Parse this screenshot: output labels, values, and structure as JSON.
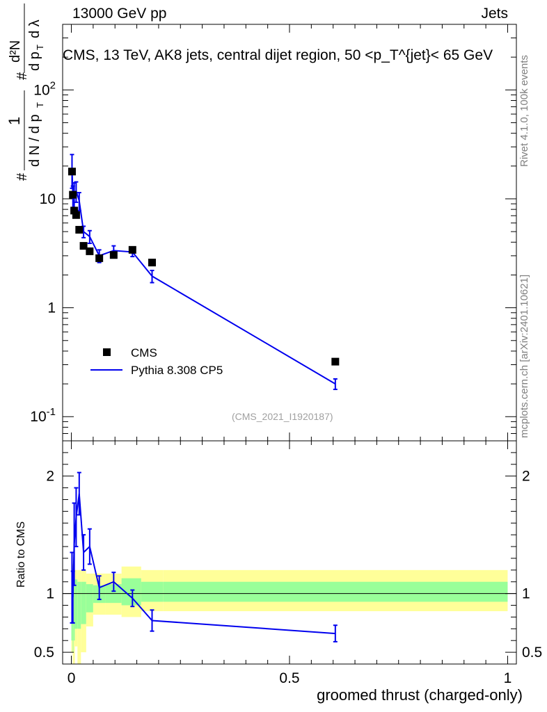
{
  "header": {
    "left": "13000 GeV pp",
    "right": "Jets"
  },
  "side": {
    "rivet": "Rivet 4.1.0,  100k events",
    "mcplots": "mcplots.cern.ch [arXiv:2401.10621]"
  },
  "chart_data": {
    "type": "scatter",
    "title": "CMS, 13 TeV, AK8 jets, central dijet region, 50 <p_T^{jet}< 65 GeV",
    "xlabel": "groomed thrust (charged-only)",
    "ylabel": "1/dN/dp_T  d²N/dp_T dλ",
    "ylabel_ratio": "Ratio to CMS",
    "reference": "(CMS_2021_I1920187)",
    "xlim": [
      -0.02,
      1.02
    ],
    "ylim_main": [
      0.06,
      400
    ],
    "ylim_ratio": [
      0.4,
      2.3
    ],
    "x_ticks": [
      "0",
      "0.5",
      "1"
    ],
    "y_ticks_main": [
      "10^-1",
      "1",
      "10",
      "10^2"
    ],
    "y_ticks_ratio": [
      "0.5",
      "1",
      "2"
    ],
    "legend": [
      "CMS",
      "Pythia 8.308 CP5"
    ],
    "series": [
      {
        "name": "CMS",
        "style": "markers",
        "color": "#000000",
        "x": [
          0.0015,
          0.0035,
          0.0065,
          0.011,
          0.018,
          0.028,
          0.042,
          0.064,
          0.097,
          0.14,
          0.185,
          0.605
        ],
        "y": [
          17.8,
          10.9,
          7.8,
          7.1,
          5.2,
          3.7,
          3.3,
          2.85,
          3.05,
          3.4,
          2.6,
          0.32
        ]
      },
      {
        "name": "Pythia 8.308 CP5",
        "style": "line",
        "color": "#0000ee",
        "x": [
          0.0015,
          0.0035,
          0.0065,
          0.011,
          0.018,
          0.028,
          0.042,
          0.064,
          0.097,
          0.14,
          0.185,
          0.605
        ],
        "y": [
          19.0,
          10.6,
          11.0,
          11.8,
          9.6,
          5.0,
          4.5,
          3.0,
          3.35,
          3.25,
          1.95,
          0.2
        ],
        "yerr": [
          6.5,
          2.5,
          3.0,
          2.5,
          1.8,
          0.6,
          0.6,
          0.4,
          0.35,
          0.3,
          0.25,
          0.022
        ]
      }
    ],
    "ratio": {
      "bins": [
        0.0,
        0.003,
        0.005,
        0.008,
        0.014,
        0.022,
        0.034,
        0.05,
        0.078,
        0.115,
        0.16,
        0.21,
        1.0
      ],
      "stat_lo": [
        0.6,
        0.5,
        0.6,
        0.7,
        0.7,
        0.74,
        0.84,
        0.92,
        0.92,
        0.9,
        0.93,
        0.93
      ],
      "stat_hi": [
        1.25,
        1.15,
        1.15,
        1.12,
        1.1,
        1.1,
        1.08,
        1.07,
        1.08,
        1.13,
        1.1,
        1.1
      ],
      "tot_lo": [
        0.5,
        0.4,
        0.4,
        0.55,
        0.3,
        0.5,
        0.72,
        0.82,
        0.82,
        0.8,
        0.85,
        0.85
      ],
      "tot_hi": [
        1.35,
        1.25,
        1.25,
        1.2,
        1.2,
        1.2,
        1.17,
        1.17,
        1.17,
        1.23,
        1.2,
        1.2
      ],
      "x": [
        0.0015,
        0.0035,
        0.0065,
        0.011,
        0.018,
        0.028,
        0.042,
        0.064,
        0.097,
        0.14,
        0.185,
        0.605
      ],
      "pythia": [
        1.05,
        0.97,
        1.42,
        1.65,
        1.85,
        1.35,
        1.4,
        1.05,
        1.1,
        0.96,
        0.77,
        0.66
      ],
      "pythia_err": [
        0.3,
        0.22,
        0.35,
        0.25,
        0.18,
        0.15,
        0.15,
        0.1,
        0.08,
        0.07,
        0.09,
        0.07
      ]
    },
    "colors": {
      "mc": "#0000ee",
      "data": "#000000",
      "stat_band": "#99ff99",
      "total_band": "#ffff99"
    }
  }
}
